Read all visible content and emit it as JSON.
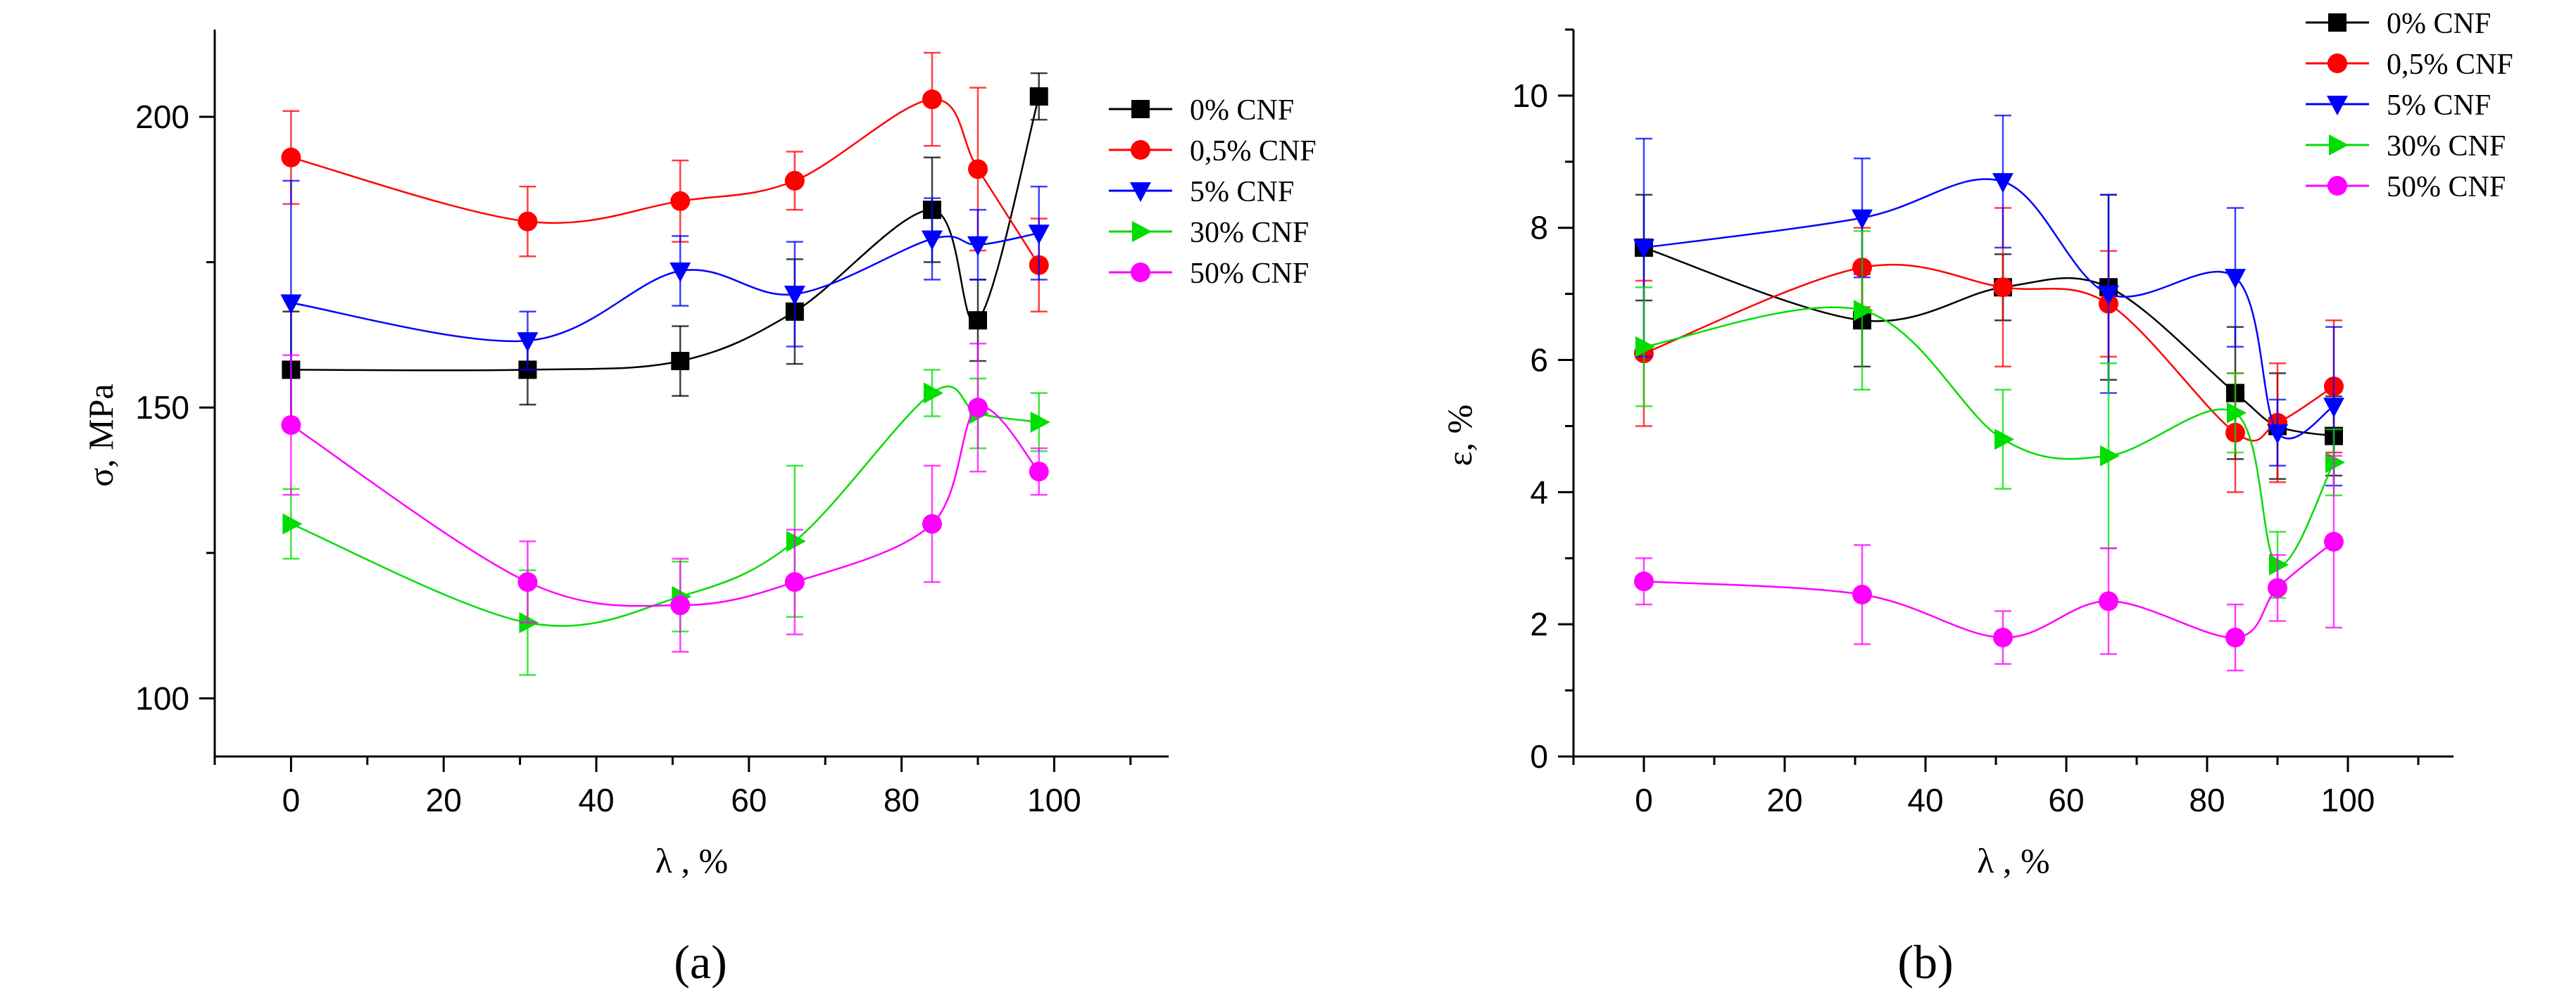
{
  "figure": {
    "panel_labels": [
      "(a)",
      "(b)"
    ]
  },
  "chart_data": [
    {
      "type": "scatter",
      "panel": "(a)",
      "title": "",
      "xlabel": "λ , %",
      "ylabel": "σ, MPa",
      "xlim": [
        -10,
        115
      ],
      "ylim": [
        90,
        215
      ],
      "xticks": [
        0,
        20,
        40,
        60,
        80,
        100
      ],
      "yticks": [
        100,
        150,
        200
      ],
      "legend_position": "top-right",
      "series": [
        {
          "name": "0% CNF",
          "color": "#000000",
          "marker": "square",
          "x": [
            0,
            31,
            51,
            66,
            84,
            90,
            98
          ],
          "y": [
            156.5,
            156.5,
            158,
            166.5,
            184,
            165,
            203.5
          ],
          "err": [
            10,
            6,
            6,
            9,
            9,
            7,
            4
          ]
        },
        {
          "name": "0,5% CNF",
          "color": "#ff0000",
          "marker": "circle",
          "x": [
            0,
            31,
            51,
            66,
            84,
            90,
            98
          ],
          "y": [
            193,
            182,
            185.5,
            189,
            203,
            191,
            174.5
          ],
          "err": [
            8,
            6,
            7,
            5,
            8,
            14,
            8
          ]
        },
        {
          "name": "5% CNF",
          "color": "#0000ff",
          "marker": "triangle-down",
          "x": [
            0,
            31,
            51,
            66,
            84,
            90,
            98
          ],
          "y": [
            168,
            161.5,
            173.5,
            169.5,
            179,
            178,
            180
          ],
          "err": [
            21,
            5,
            6,
            9,
            7,
            6,
            8
          ]
        },
        {
          "name": "30% CNF",
          "color": "#00dd00",
          "marker": "triangle-right",
          "x": [
            0,
            31,
            51,
            66,
            84,
            90,
            98
          ],
          "y": [
            130,
            113,
            117.5,
            127,
            152.5,
            149,
            147.5
          ],
          "err": [
            6,
            9,
            6,
            13,
            4,
            6,
            5
          ]
        },
        {
          "name": "50% CNF",
          "color": "#ff00ff",
          "marker": "circle",
          "x": [
            0,
            31,
            51,
            66,
            84,
            90,
            98
          ],
          "y": [
            147,
            120,
            116,
            120,
            130,
            150,
            139
          ],
          "err": [
            12,
            7,
            8,
            9,
            10,
            11,
            4
          ]
        }
      ]
    },
    {
      "type": "scatter",
      "panel": "(b)",
      "title": "",
      "xlabel": "λ , %",
      "ylabel": "ε, %",
      "xlim": [
        -10,
        115
      ],
      "ylim": [
        0,
        11
      ],
      "xticks": [
        0,
        20,
        40,
        60,
        80,
        100
      ],
      "yticks": [
        0,
        2,
        4,
        6,
        8,
        10
      ],
      "legend_position": "top-right",
      "series": [
        {
          "name": "0% CNF",
          "color": "#000000",
          "marker": "square",
          "x": [
            0,
            31,
            51,
            66,
            84,
            90,
            98
          ],
          "y": [
            7.7,
            6.6,
            7.1,
            7.1,
            5.5,
            5.0,
            4.85
          ],
          "err": [
            0.8,
            0.7,
            0.5,
            1.4,
            1.0,
            0.8,
            0.6
          ]
        },
        {
          "name": "0,5% CNF",
          "color": "#ff0000",
          "marker": "circle",
          "x": [
            0,
            31,
            51,
            66,
            84,
            90,
            98
          ],
          "y": [
            6.1,
            7.4,
            7.1,
            6.85,
            4.9,
            5.05,
            5.6
          ],
          "err": [
            1.1,
            0.6,
            1.2,
            0.8,
            0.9,
            0.9,
            1.0
          ]
        },
        {
          "name": "5% CNF",
          "color": "#0000ff",
          "marker": "triangle-down",
          "x": [
            0,
            31,
            51,
            66,
            84,
            90,
            98
          ],
          "y": [
            7.7,
            8.15,
            8.7,
            7.0,
            7.25,
            4.9,
            5.3
          ],
          "err": [
            1.65,
            0.9,
            1.0,
            1.5,
            1.05,
            0.5,
            1.2
          ]
        },
        {
          "name": "30% CNF",
          "color": "#00dd00",
          "marker": "triangle-right",
          "x": [
            0,
            31,
            51,
            66,
            84,
            90,
            98
          ],
          "y": [
            6.2,
            6.75,
            4.8,
            4.55,
            5.2,
            2.9,
            4.45
          ],
          "err": [
            0.9,
            1.2,
            0.75,
            1.4,
            0.6,
            0.5,
            0.5
          ]
        },
        {
          "name": "50% CNF",
          "color": "#ff00ff",
          "marker": "circle",
          "x": [
            0,
            31,
            51,
            66,
            84,
            90,
            98
          ],
          "y": [
            2.65,
            2.45,
            1.8,
            2.35,
            1.8,
            2.55,
            3.25
          ],
          "err": [
            0.35,
            0.75,
            0.4,
            0.8,
            0.5,
            0.5,
            1.3
          ]
        }
      ]
    }
  ]
}
